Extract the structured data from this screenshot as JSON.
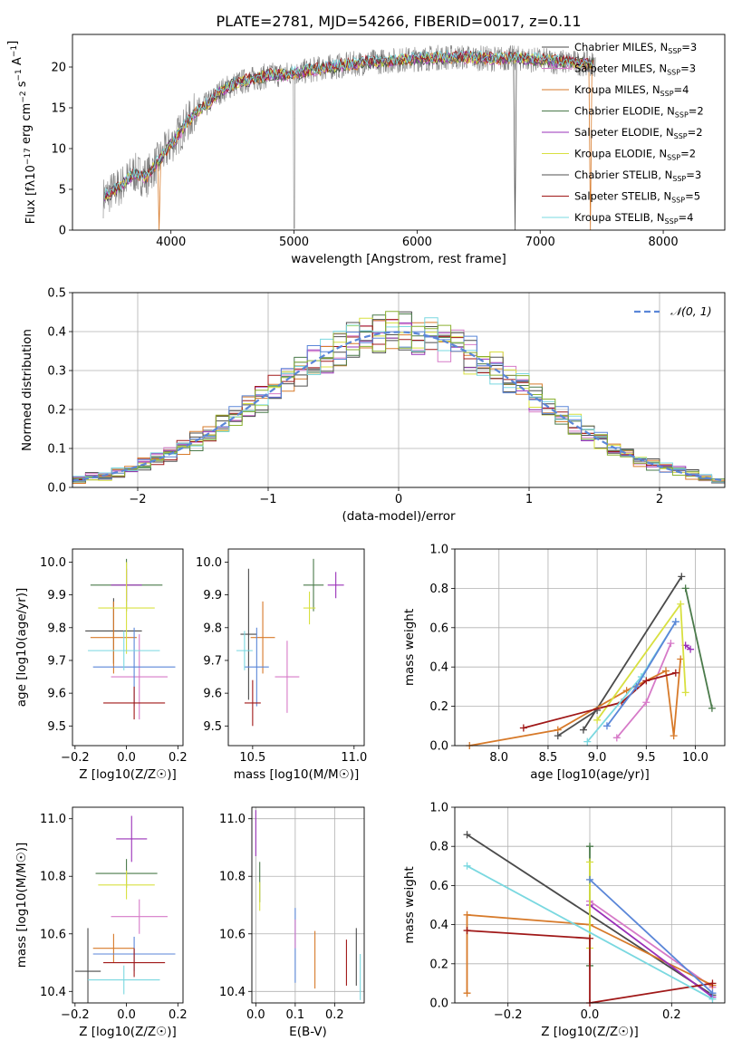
{
  "title": "PLATE=2781, MJD=54266, FIBERID=0017, z=0.11",
  "models": [
    {
      "label": "Chabrier MILES, N",
      "n": "3",
      "color": "#4a4a4a"
    },
    {
      "label": "Salpeter MILES, N",
      "n": "3",
      "color": "#d67ac8"
    },
    {
      "label": "Kroupa MILES, N",
      "n": "4",
      "color": "#d77a2a"
    },
    {
      "label": "Chabrier ELODIE, N",
      "n": "2",
      "color": "#4a7a4a"
    },
    {
      "label": "Salpeter ELODIE, N",
      "n": "2",
      "color": "#9a30b8"
    },
    {
      "label": "Kroupa ELODIE, N",
      "n": "2",
      "color": "#d8e040"
    },
    {
      "label": "Chabrier STELIB, N",
      "n": "3",
      "color": "#505050"
    },
    {
      "label": "Salpeter STELIB, N",
      "n": "5",
      "color": "#a01818"
    },
    {
      "label": "Kroupa STELIB, N",
      "n": "4",
      "color": "#7ad8e0"
    }
  ],
  "ssp_subscript": "SSP",
  "chart_data": [
    {
      "id": "spectrum",
      "type": "line",
      "xlabel": "wavelength [Angstrom, rest frame]",
      "ylabel": "Flux [f",
      "ylabel_rest": "10",
      "ylabel_units": " erg cm",
      "xlim": [
        3200,
        8500
      ],
      "ylim": [
        0,
        24
      ],
      "xticks": [
        4000,
        5000,
        6000,
        7000,
        8000
      ],
      "yticks": [
        0,
        5,
        10,
        15,
        20
      ],
      "continuum": {
        "x": [
          3450,
          3600,
          3700,
          3800,
          3900,
          4000,
          4100,
          4200,
          4300,
          4400,
          4500,
          4600,
          4800,
          5000,
          5200,
          5400,
          5600,
          5800,
          6000,
          6200,
          6400,
          6600,
          6800,
          7000,
          7200,
          7400
        ],
        "y": [
          4.0,
          5.5,
          7.0,
          6.5,
          8.5,
          10.5,
          12.5,
          14.5,
          15.5,
          17.0,
          17.8,
          18.3,
          19.0,
          19.2,
          19.8,
          20.2,
          20.6,
          20.8,
          21.0,
          21.2,
          21.2,
          21.0,
          21.1,
          20.8,
          20.6,
          20.4
        ]
      },
      "dips": [
        {
          "x": 5000,
          "y": 0
        },
        {
          "x": 3900,
          "y": 0
        },
        {
          "x": 6800,
          "y": 0
        },
        {
          "x": 7410,
          "y": 0
        }
      ],
      "legend": "right"
    },
    {
      "id": "residuals",
      "type": "line",
      "xlabel": "(data-model)/error",
      "ylabel": "Normed distribution",
      "xlim": [
        -2.5,
        2.5
      ],
      "ylim": [
        0,
        0.5
      ],
      "xticks": [
        -2,
        -1,
        0,
        1,
        2
      ],
      "xtick_labels": [
        "−2",
        "−1",
        "0",
        "1",
        "2"
      ],
      "yticks": [
        0.0,
        0.1,
        0.2,
        0.3,
        0.4,
        0.5
      ],
      "ytick_labels": [
        "0.0",
        "0.1",
        "0.2",
        "0.3",
        "0.4",
        "0.5"
      ],
      "gauss_label": "𝒩(0, 1)",
      "grid": true,
      "legend": "top-right"
    },
    {
      "id": "age-vs-z",
      "type": "scatter",
      "xlabel": "Z [log10(Z/Z☉)]",
      "ylabel": "age [log10(age/yr)]",
      "xlim": [
        -0.21,
        0.22
      ],
      "ylim": [
        9.44,
        10.04
      ],
      "xticks": [
        -0.2,
        0.0,
        0.2
      ],
      "xtick_labels": [
        "−0.2",
        "0.0",
        "0.2"
      ],
      "yticks": [
        9.5,
        9.6,
        9.7,
        9.8,
        9.9,
        10.0
      ],
      "ytick_labels": [
        "9.5",
        "9.6",
        "9.7",
        "9.8",
        "9.9",
        "10.0"
      ],
      "points": [
        {
          "x": -0.05,
          "y": 9.79,
          "xerr": 0.11,
          "yerr": 0.1,
          "c": 0
        },
        {
          "x": -0.05,
          "y": 9.77,
          "xerr": 0.09,
          "yerr": 0.11,
          "c": 2
        },
        {
          "x": 0.0,
          "y": 9.93,
          "xerr": 0.14,
          "yerr": 0.08,
          "c": 3
        },
        {
          "x": 0.0,
          "y": 9.93,
          "xerr": 0.06,
          "yerr": 0.05,
          "c": 4
        },
        {
          "x": 0.0,
          "y": 9.86,
          "xerr": 0.11,
          "yerr": 0.14,
          "c": 5
        },
        {
          "x": 0.05,
          "y": 9.65,
          "xerr": 0.11,
          "yerr": 0.13,
          "c": 1
        },
        {
          "x": 0.03,
          "y": 9.68,
          "xerr": 0.16,
          "yerr": 0.12,
          "c": 9
        },
        {
          "x": 0.03,
          "y": 9.57,
          "xerr": 0.12,
          "yerr": 0.05,
          "c": 7
        },
        {
          "x": -0.01,
          "y": 9.73,
          "xerr": 0.14,
          "yerr": 0.06,
          "c": 8
        }
      ]
    },
    {
      "id": "age-vs-mass",
      "type": "scatter",
      "xlabel": "mass [log10(M/M☉)]",
      "ylabel": "",
      "xlim": [
        10.38,
        11.05
      ],
      "ylim": [
        9.44,
        10.04
      ],
      "xticks": [
        10.5,
        11.0
      ],
      "xtick_labels": [
        "10.5",
        "11.0"
      ],
      "yticks": [
        9.5,
        9.6,
        9.7,
        9.8,
        9.9,
        10.0
      ],
      "ytick_labels": [
        "9.5",
        "9.6",
        "9.7",
        "9.8",
        "9.9",
        "10.0"
      ],
      "points": [
        {
          "x": 10.48,
          "y": 9.78,
          "xerr": 0.04,
          "yerr": 0.2,
          "c": 0
        },
        {
          "x": 10.55,
          "y": 9.77,
          "xerr": 0.06,
          "yerr": 0.11,
          "c": 2
        },
        {
          "x": 10.8,
          "y": 9.93,
          "xerr": 0.05,
          "yerr": 0.08,
          "c": 3
        },
        {
          "x": 10.91,
          "y": 9.93,
          "xerr": 0.04,
          "yerr": 0.04,
          "c": 4
        },
        {
          "x": 10.78,
          "y": 9.86,
          "xerr": 0.03,
          "yerr": 0.05,
          "c": 5
        },
        {
          "x": 10.67,
          "y": 9.65,
          "xerr": 0.06,
          "yerr": 0.11,
          "c": 1
        },
        {
          "x": 10.52,
          "y": 9.68,
          "xerr": 0.06,
          "yerr": 0.12,
          "c": 9
        },
        {
          "x": 10.5,
          "y": 9.57,
          "xerr": 0.04,
          "yerr": 0.07,
          "c": 7
        },
        {
          "x": 10.46,
          "y": 9.73,
          "xerr": 0.04,
          "yerr": 0.06,
          "c": 8
        }
      ]
    },
    {
      "id": "weight-vs-age",
      "type": "line",
      "xlabel": "age [log10(age/yr)]",
      "ylabel": "mass weight",
      "xlim": [
        7.55,
        10.3
      ],
      "ylim": [
        0,
        1
      ],
      "xticks": [
        8.0,
        8.5,
        9.0,
        9.5,
        10.0
      ],
      "xtick_labels": [
        "8.0",
        "8.5",
        "9.0",
        "9.5",
        "10.0"
      ],
      "yticks": [
        0.0,
        0.2,
        0.4,
        0.6,
        0.8,
        1.0
      ],
      "ytick_labels": [
        "0.0",
        "0.2",
        "0.4",
        "0.6",
        "0.8",
        "1.0"
      ],
      "grid": true,
      "series": [
        {
          "c": 0,
          "x": [
            8.86,
            9.86
          ],
          "y": [
            0.08,
            0.86
          ]
        },
        {
          "c": 1,
          "x": [
            9.2,
            9.5,
            9.75
          ],
          "y": [
            0.04,
            0.22,
            0.52
          ]
        },
        {
          "c": 2,
          "x": [
            7.7,
            8.6,
            9.3,
            9.7,
            9.78,
            9.85
          ],
          "y": [
            0.0,
            0.08,
            0.28,
            0.38,
            0.05,
            0.44
          ]
        },
        {
          "c": 3,
          "x": [
            9.9,
            10.17
          ],
          "y": [
            0.8,
            0.19
          ]
        },
        {
          "c": 4,
          "x": [
            9.9,
            9.95
          ],
          "y": [
            0.51,
            0.49
          ]
        },
        {
          "c": 5,
          "x": [
            9.0,
            9.85,
            9.9
          ],
          "y": [
            0.13,
            0.72,
            0.27
          ]
        },
        {
          "c": 6,
          "x": [
            8.6,
            9.0
          ],
          "y": [
            0.05,
            0.18
          ]
        },
        {
          "c": 7,
          "x": [
            8.25,
            9.25,
            9.5,
            9.8
          ],
          "y": [
            0.09,
            0.22,
            0.33,
            0.37
          ]
        },
        {
          "c": 8,
          "x": [
            8.9,
            9.45,
            9.8
          ],
          "y": [
            0.02,
            0.35,
            0.63
          ]
        },
        {
          "c": 9,
          "x": [
            9.1,
            9.4,
            9.8
          ],
          "y": [
            0.1,
            0.3,
            0.63
          ]
        }
      ]
    },
    {
      "id": "mass-vs-z",
      "type": "scatter",
      "xlabel": "Z [log10(Z/Z☉)]",
      "ylabel": "mass [log10(M/M☉)]",
      "xlim": [
        -0.21,
        0.22
      ],
      "ylim": [
        10.36,
        11.04
      ],
      "xticks": [
        -0.2,
        0.0,
        0.2
      ],
      "xtick_labels": [
        "−0.2",
        "0.0",
        "0.2"
      ],
      "yticks": [
        10.4,
        10.6,
        10.8,
        11.0
      ],
      "ytick_labels": [
        "10.4",
        "10.6",
        "10.8",
        "11.0"
      ],
      "points": [
        {
          "x": -0.15,
          "y": 10.47,
          "xerr": 0.05,
          "yerr": 0.15,
          "c": 0
        },
        {
          "x": -0.05,
          "y": 10.55,
          "xerr": 0.08,
          "yerr": 0.05,
          "c": 2
        },
        {
          "x": 0.0,
          "y": 10.81,
          "xerr": 0.12,
          "yerr": 0.05,
          "c": 3
        },
        {
          "x": 0.02,
          "y": 10.93,
          "xerr": 0.06,
          "yerr": 0.08,
          "c": 4
        },
        {
          "x": 0.0,
          "y": 10.77,
          "xerr": 0.11,
          "yerr": 0.05,
          "c": 5
        },
        {
          "x": 0.05,
          "y": 10.66,
          "xerr": 0.11,
          "yerr": 0.06,
          "c": 1
        },
        {
          "x": 0.03,
          "y": 10.53,
          "xerr": 0.16,
          "yerr": 0.06,
          "c": 9
        },
        {
          "x": 0.03,
          "y": 10.5,
          "xerr": 0.12,
          "yerr": 0.05,
          "c": 7
        },
        {
          "x": -0.01,
          "y": 10.44,
          "xerr": 0.14,
          "yerr": 0.05,
          "c": 8
        }
      ]
    },
    {
      "id": "mass-vs-ebv",
      "type": "scatter",
      "xlabel": "E(B-V)",
      "ylabel": "",
      "xlim": [
        -0.01,
        0.275
      ],
      "ylim": [
        10.36,
        11.04
      ],
      "xticks": [
        0.0,
        0.1,
        0.2
      ],
      "xtick_labels": [
        "0.0",
        "0.1",
        "0.2"
      ],
      "yticks": [
        10.4,
        10.6,
        10.8,
        11.0
      ],
      "ytick_labels": [
        "10.4",
        "10.6",
        "10.8",
        "11.0"
      ],
      "grid": true,
      "points": [
        {
          "x": 0.0,
          "y": 10.95,
          "xerr": 0,
          "yerr": 0.08,
          "c": 4
        },
        {
          "x": 0.01,
          "y": 10.78,
          "xerr": 0,
          "yerr": 0.07,
          "c": 3
        },
        {
          "x": 0.01,
          "y": 10.73,
          "xerr": 0,
          "yerr": 0.05,
          "c": 5
        },
        {
          "x": 0.1,
          "y": 10.56,
          "xerr": 0,
          "yerr": 0.13,
          "c": 9
        },
        {
          "x": 0.1,
          "y": 10.6,
          "xerr": 0,
          "yerr": 0.05,
          "c": 1
        },
        {
          "x": 0.15,
          "y": 10.51,
          "xerr": 0,
          "yerr": 0.1,
          "c": 2
        },
        {
          "x": 0.23,
          "y": 10.5,
          "xerr": 0,
          "yerr": 0.08,
          "c": 7
        },
        {
          "x": 0.255,
          "y": 10.52,
          "xerr": 0,
          "yerr": 0.1,
          "c": 0
        },
        {
          "x": 0.265,
          "y": 10.45,
          "xerr": 0,
          "yerr": 0.08,
          "c": 8
        }
      ]
    },
    {
      "id": "weight-vs-z",
      "type": "line",
      "xlabel": "Z [log10(Z/Z☉)]",
      "ylabel": "mass weight",
      "xlim": [
        -0.33,
        0.33
      ],
      "ylim": [
        0,
        1
      ],
      "xticks": [
        -0.2,
        0.0,
        0.2
      ],
      "xtick_labels": [
        "−0.2",
        "0.0",
        "0.2"
      ],
      "yticks": [
        0.0,
        0.2,
        0.4,
        0.6,
        0.8,
        1.0
      ],
      "ytick_labels": [
        "0.0",
        "0.2",
        "0.4",
        "0.6",
        "0.8",
        "1.0"
      ],
      "grid": true,
      "series": [
        {
          "c": 0,
          "x": [
            -0.3,
            0.3
          ],
          "y": [
            0.86,
            0.04
          ]
        },
        {
          "c": 1,
          "x": [
            0.0,
            0.3
          ],
          "y": [
            0.52,
            0.08
          ]
        },
        {
          "c": 2,
          "x": [
            -0.3,
            -0.3,
            0.0,
            0.3
          ],
          "y": [
            0.05,
            0.45,
            0.4,
            0.09
          ]
        },
        {
          "c": 3,
          "x": [
            0.0,
            0.0
          ],
          "y": [
            0.8,
            0.19
          ]
        },
        {
          "c": 4,
          "x": [
            0.0,
            0.3
          ],
          "y": [
            0.5,
            0.03
          ]
        },
        {
          "c": 5,
          "x": [
            0.0,
            0.0
          ],
          "y": [
            0.72,
            0.28
          ]
        },
        {
          "c": 7,
          "x": [
            -0.3,
            0.0,
            0.0,
            0.3
          ],
          "y": [
            0.37,
            0.33,
            0.0,
            0.1
          ]
        },
        {
          "c": 8,
          "x": [
            -0.3,
            0.3
          ],
          "y": [
            0.7,
            0.02
          ]
        },
        {
          "c": 9,
          "x": [
            0.0,
            0.3
          ],
          "y": [
            0.63,
            0.05
          ]
        }
      ]
    }
  ],
  "extra_colors": {
    "blue": "#5a86d8",
    "olive": "#8ab030",
    "gauss": "#5a86d8"
  }
}
